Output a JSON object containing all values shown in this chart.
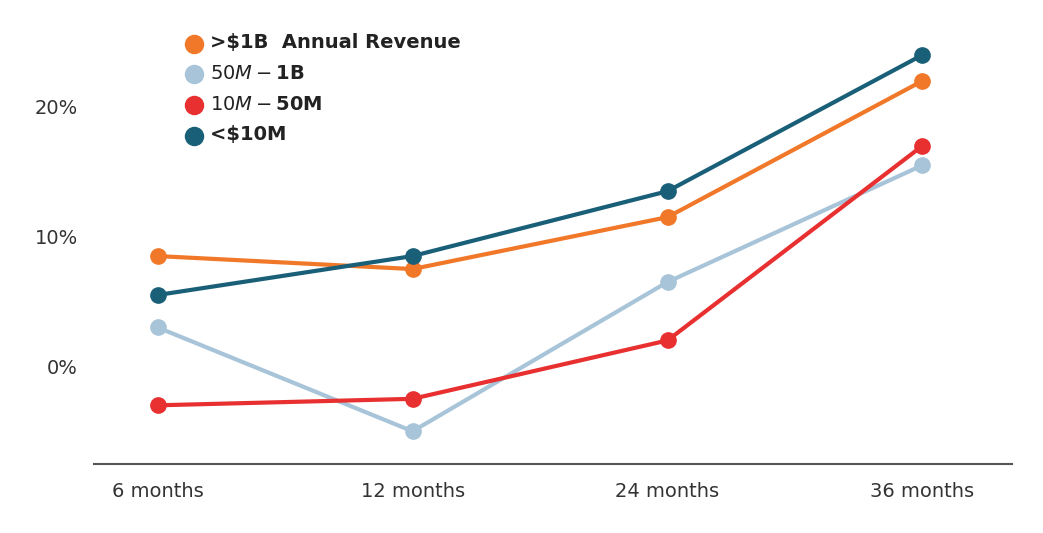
{
  "x_labels": [
    "6 months",
    "12 months",
    "24 months",
    "36 months"
  ],
  "series": [
    {
      "label": ">​$1B  Annual Revenue",
      "color": "#F07828",
      "values": [
        8.5,
        7.5,
        11.5,
        22.0
      ]
    },
    {
      "label": "​$50M - ​$1B",
      "color": "#A8C4D8",
      "values": [
        3.0,
        -5.0,
        6.5,
        15.5
      ]
    },
    {
      "label": "​$10M - ​$50M",
      "color": "#E83030",
      "values": [
        -3.0,
        -2.5,
        2.0,
        17.0
      ]
    },
    {
      "label": "<​$10M",
      "color": "#1A5F78",
      "values": [
        5.5,
        8.5,
        13.5,
        24.0
      ]
    }
  ],
  "yticks": [
    -5,
    0,
    5,
    10,
    15,
    20,
    25
  ],
  "ytick_labels": [
    "",
    "0%",
    "",
    "10%",
    "",
    "20%",
    ""
  ],
  "ylim": [
    -7.5,
    27
  ],
  "xlim": [
    -0.25,
    3.35
  ],
  "background_color": "#FFFFFF",
  "line_width": 3.0,
  "marker_size": 11,
  "legend_fontsize": 14,
  "tick_fontsize": 14
}
